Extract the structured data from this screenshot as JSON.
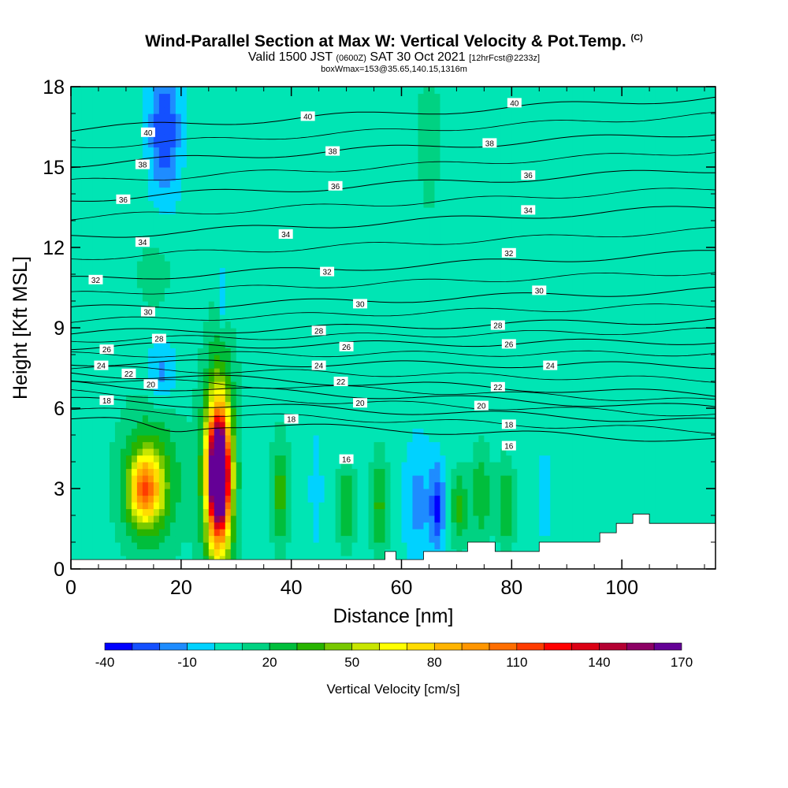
{
  "title": {
    "main": "Wind-Parallel Section at Max W: Vertical Velocity & Pot.Temp.",
    "main_mark": "(C)",
    "valid_prefix": "Valid 1500 JST",
    "valid_utc": "(0600Z)",
    "valid_date": "SAT 30 Oct 2021",
    "valid_fcst": "[12hrFcst@2233z]",
    "box": "boxWmax=153@35.65,140.15,1316m"
  },
  "chart_data": {
    "type": "heatmap",
    "xlabel": "Distance [nm]",
    "ylabel": "Height [Kft MSL]",
    "xlim": [
      0,
      117
    ],
    "ylim": [
      0,
      18
    ],
    "x_ticks": [
      0,
      20,
      40,
      60,
      80,
      100
    ],
    "y_ticks": [
      0,
      3,
      6,
      9,
      12,
      15,
      18
    ],
    "colorbar": {
      "label": "Vertical Velocity [cm/s]",
      "levels": [
        -40,
        -30,
        -20,
        -10,
        0,
        10,
        20,
        30,
        40,
        50,
        60,
        70,
        80,
        90,
        100,
        110,
        120,
        130,
        140,
        150,
        160,
        170
      ],
      "tick_labels": [
        "-40",
        "-10",
        "20",
        "50",
        "80",
        "110",
        "140",
        "170"
      ],
      "tick_values": [
        -40,
        -10,
        20,
        50,
        80,
        110,
        140,
        170
      ],
      "colors": [
        "#0000ff",
        "#1450ff",
        "#1e8cff",
        "#00d2ff",
        "#00e5b4",
        "#00d282",
        "#00be3c",
        "#28b400",
        "#78c800",
        "#c8e600",
        "#ffff00",
        "#ffdc00",
        "#ffb400",
        "#ff9600",
        "#ff6e00",
        "#ff3c00",
        "#ff0000",
        "#dc0014",
        "#b40032",
        "#8c0064",
        "#640096"
      ]
    },
    "background_w": 5,
    "w_features": [
      {
        "x": 13.5,
        "z": 3.0,
        "rx": 2.8,
        "rz": 1.2,
        "w": 75
      },
      {
        "x": 14.5,
        "z": 3.3,
        "rx": 5.5,
        "rz": 2.6,
        "w": 35
      },
      {
        "x": 26.8,
        "z": 3.6,
        "rx": 1.6,
        "rz": 1.7,
        "w": 160
      },
      {
        "x": 26.8,
        "z": 3.4,
        "rx": 2.3,
        "rz": 3.3,
        "w": 90
      },
      {
        "x": 26.8,
        "z": 3.8,
        "rx": 3.2,
        "rz": 4.4,
        "w": 30
      },
      {
        "x": 38,
        "z": 2.8,
        "rx": 1.6,
        "rz": 2.0,
        "w": 30
      },
      {
        "x": 44.5,
        "z": 3.0,
        "rx": 1.0,
        "rz": 1.8,
        "w": -15
      },
      {
        "x": 50,
        "z": 2.4,
        "rx": 1.6,
        "rz": 1.6,
        "w": 25
      },
      {
        "x": 56,
        "z": 2.4,
        "rx": 1.6,
        "rz": 1.8,
        "w": 28
      },
      {
        "x": 63,
        "z": 2.5,
        "rx": 2.6,
        "rz": 2.4,
        "w": -18
      },
      {
        "x": 66.5,
        "z": 2.3,
        "rx": 1.3,
        "rz": 1.6,
        "w": -35
      },
      {
        "x": 70.5,
        "z": 2.3,
        "rx": 1.5,
        "rz": 1.3,
        "w": 30
      },
      {
        "x": 74.5,
        "z": 2.8,
        "rx": 1.8,
        "rz": 1.8,
        "w": 25
      },
      {
        "x": 79,
        "z": 2.4,
        "rx": 1.6,
        "rz": 1.6,
        "w": 25
      },
      {
        "x": 86,
        "z": 2.8,
        "rx": 1.2,
        "rz": 1.5,
        "w": -15
      },
      {
        "x": 16.5,
        "z": 7.3,
        "rx": 2.6,
        "rz": 1.2,
        "w": -20
      },
      {
        "x": 17,
        "z": 16.4,
        "rx": 2.8,
        "rz": 2.4,
        "w": -35
      },
      {
        "x": 27.5,
        "z": 10.2,
        "rx": 0.8,
        "rz": 1.3,
        "w": -15
      },
      {
        "x": 65,
        "z": 16.2,
        "rx": 1.8,
        "rz": 2.6,
        "w": 15
      },
      {
        "x": 15,
        "z": 11.0,
        "rx": 3.0,
        "rz": 1.3,
        "w": 12
      }
    ],
    "theta_contours": [
      {
        "label": "16",
        "z_left": 5.6,
        "z_right": 4.8
      },
      {
        "label": "18",
        "z_left": 6.3,
        "z_right": 5.5
      },
      {
        "label": "20",
        "z_left": 6.9,
        "z_right": 6.0
      },
      {
        "label": "22",
        "z_left": 7.3,
        "z_right": 6.5
      },
      {
        "label": "24",
        "z_left": 7.7,
        "z_right": 7.6
      },
      {
        "label": "26",
        "z_left": 8.3,
        "z_right": 8.5
      },
      {
        "label": "28",
        "z_left": 8.8,
        "z_right": 9.3
      },
      {
        "label": "30",
        "z_left": 9.7,
        "z_right": 10.4
      },
      {
        "label": "32",
        "z_left": 10.8,
        "z_right": 11.8
      },
      {
        "label": "34",
        "z_left": 12.4,
        "z_right": 13.5
      },
      {
        "label": "36",
        "z_left": 13.8,
        "z_right": 14.9
      },
      {
        "label": "38",
        "z_left": 15.1,
        "z_right": 16.3
      },
      {
        "label": "40",
        "z_left": 16.4,
        "z_right": 17.6
      }
    ],
    "contour_labels": [
      {
        "text": "40",
        "x": 14,
        "z": 16.3
      },
      {
        "text": "40",
        "x": 43,
        "z": 16.9
      },
      {
        "text": "40",
        "x": 80.5,
        "z": 17.4
      },
      {
        "text": "38",
        "x": 13,
        "z": 15.1
      },
      {
        "text": "38",
        "x": 47.5,
        "z": 15.6
      },
      {
        "text": "38",
        "x": 76,
        "z": 15.9
      },
      {
        "text": "36",
        "x": 9.5,
        "z": 13.8
      },
      {
        "text": "36",
        "x": 48,
        "z": 14.3
      },
      {
        "text": "36",
        "x": 83,
        "z": 14.7
      },
      {
        "text": "34",
        "x": 13,
        "z": 12.2
      },
      {
        "text": "34",
        "x": 39,
        "z": 12.5
      },
      {
        "text": "34",
        "x": 83,
        "z": 13.4
      },
      {
        "text": "32",
        "x": 4.5,
        "z": 10.8
      },
      {
        "text": "32",
        "x": 46.5,
        "z": 11.1
      },
      {
        "text": "32",
        "x": 79.5,
        "z": 11.8
      },
      {
        "text": "30",
        "x": 14,
        "z": 9.6
      },
      {
        "text": "30",
        "x": 52.5,
        "z": 9.9
      },
      {
        "text": "30",
        "x": 85,
        "z": 10.4
      },
      {
        "text": "28",
        "x": 16,
        "z": 8.6
      },
      {
        "text": "28",
        "x": 45,
        "z": 8.9
      },
      {
        "text": "28",
        "x": 77.5,
        "z": 9.1
      },
      {
        "text": "26",
        "x": 6.5,
        "z": 8.2
      },
      {
        "text": "26",
        "x": 50,
        "z": 8.3
      },
      {
        "text": "26",
        "x": 79.5,
        "z": 8.4
      },
      {
        "text": "24",
        "x": 5.5,
        "z": 7.6
      },
      {
        "text": "24",
        "x": 45,
        "z": 7.6
      },
      {
        "text": "24",
        "x": 87,
        "z": 7.6
      },
      {
        "text": "22",
        "x": 10.5,
        "z": 7.3
      },
      {
        "text": "22",
        "x": 49,
        "z": 7.0
      },
      {
        "text": "22",
        "x": 77.5,
        "z": 6.8
      },
      {
        "text": "20",
        "x": 14.5,
        "z": 6.9
      },
      {
        "text": "20",
        "x": 52.5,
        "z": 6.2
      },
      {
        "text": "20",
        "x": 74.5,
        "z": 6.1
      },
      {
        "text": "18",
        "x": 6.5,
        "z": 6.3
      },
      {
        "text": "18",
        "x": 40,
        "z": 5.6
      },
      {
        "text": "18",
        "x": 79.5,
        "z": 5.4
      },
      {
        "text": "16",
        "x": 50,
        "z": 4.1
      },
      {
        "text": "16",
        "x": 79.5,
        "z": 4.6
      }
    ],
    "terrain": [
      [
        0,
        0.35
      ],
      [
        57,
        0.35
      ],
      [
        57,
        0.65
      ],
      [
        59,
        0.65
      ],
      [
        59,
        0.35
      ],
      [
        64,
        0.35
      ],
      [
        64,
        0.65
      ],
      [
        72,
        0.65
      ],
      [
        72,
        1.0
      ],
      [
        77,
        1.0
      ],
      [
        77,
        0.65
      ],
      [
        85,
        0.65
      ],
      [
        85,
        1.0
      ],
      [
        96,
        1.0
      ],
      [
        96,
        1.35
      ],
      [
        99,
        1.35
      ],
      [
        99,
        1.7
      ],
      [
        102,
        1.7
      ],
      [
        102,
        2.05
      ],
      [
        105,
        2.05
      ],
      [
        105,
        1.7
      ],
      [
        117,
        1.7
      ]
    ]
  }
}
